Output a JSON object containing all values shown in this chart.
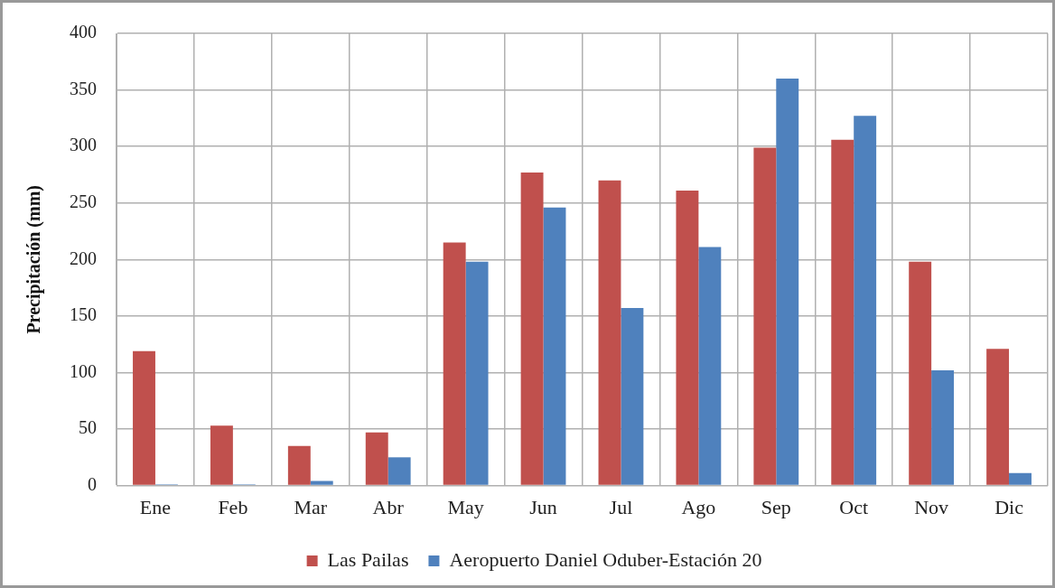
{
  "chart_data": {
    "type": "bar",
    "ylabel": "Precipitación (mm)",
    "categories": [
      "Ene",
      "Feb",
      "Mar",
      "Abr",
      "May",
      "Jun",
      "Jul",
      "Ago",
      "Sep",
      "Oct",
      "Nov",
      "Dic"
    ],
    "series": [
      {
        "name": "Las Pailas",
        "color": "#c0504d",
        "values": [
          119,
          53,
          35,
          47,
          215,
          277,
          270,
          261,
          299,
          306,
          198,
          121
        ]
      },
      {
        "name": "Aeropuerto Daniel Oduber-Estación 20",
        "color": "#4f81bd",
        "values": [
          1,
          1,
          4,
          25,
          198,
          246,
          157,
          211,
          360,
          327,
          102,
          11
        ]
      }
    ],
    "ylim": [
      0,
      400
    ],
    "yticks": [
      0,
      50,
      100,
      150,
      200,
      250,
      300,
      350,
      400
    ],
    "grid": true,
    "legend": "bottom"
  }
}
